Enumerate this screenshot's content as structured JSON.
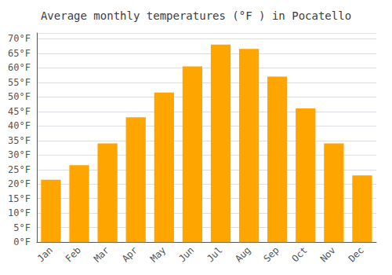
{
  "chart_data": {
    "type": "bar",
    "title": "Average monthly temperatures (°F ) in Pocatello",
    "categories": [
      "Jan",
      "Feb",
      "Mar",
      "Apr",
      "May",
      "Jun",
      "Jul",
      "Aug",
      "Sep",
      "Oct",
      "Nov",
      "Dec"
    ],
    "values": [
      21.5,
      26.5,
      34.0,
      43.0,
      51.5,
      60.5,
      68.0,
      66.5,
      57.0,
      46.0,
      34.0,
      23.0
    ],
    "color": "#FFA500",
    "ylim": [
      0,
      72
    ],
    "yticks": [
      {
        "value": 0,
        "label": "0°F"
      },
      {
        "value": 5,
        "label": "5°F"
      },
      {
        "value": 10,
        "label": "10°F"
      },
      {
        "value": 15,
        "label": "15°F"
      },
      {
        "value": 20,
        "label": "20°F"
      },
      {
        "value": 25,
        "label": "25°F"
      },
      {
        "value": 30,
        "label": "30°F"
      },
      {
        "value": 35,
        "label": "35°F"
      },
      {
        "value": 40,
        "label": "40°F"
      },
      {
        "value": 45,
        "label": "45°F"
      },
      {
        "value": 50,
        "label": "50°F"
      },
      {
        "value": 55,
        "label": "55°F"
      },
      {
        "value": 60,
        "label": "60°F"
      },
      {
        "value": 65,
        "label": "65°F"
      },
      {
        "value": 70,
        "label": "70°F"
      }
    ],
    "grid": true
  }
}
